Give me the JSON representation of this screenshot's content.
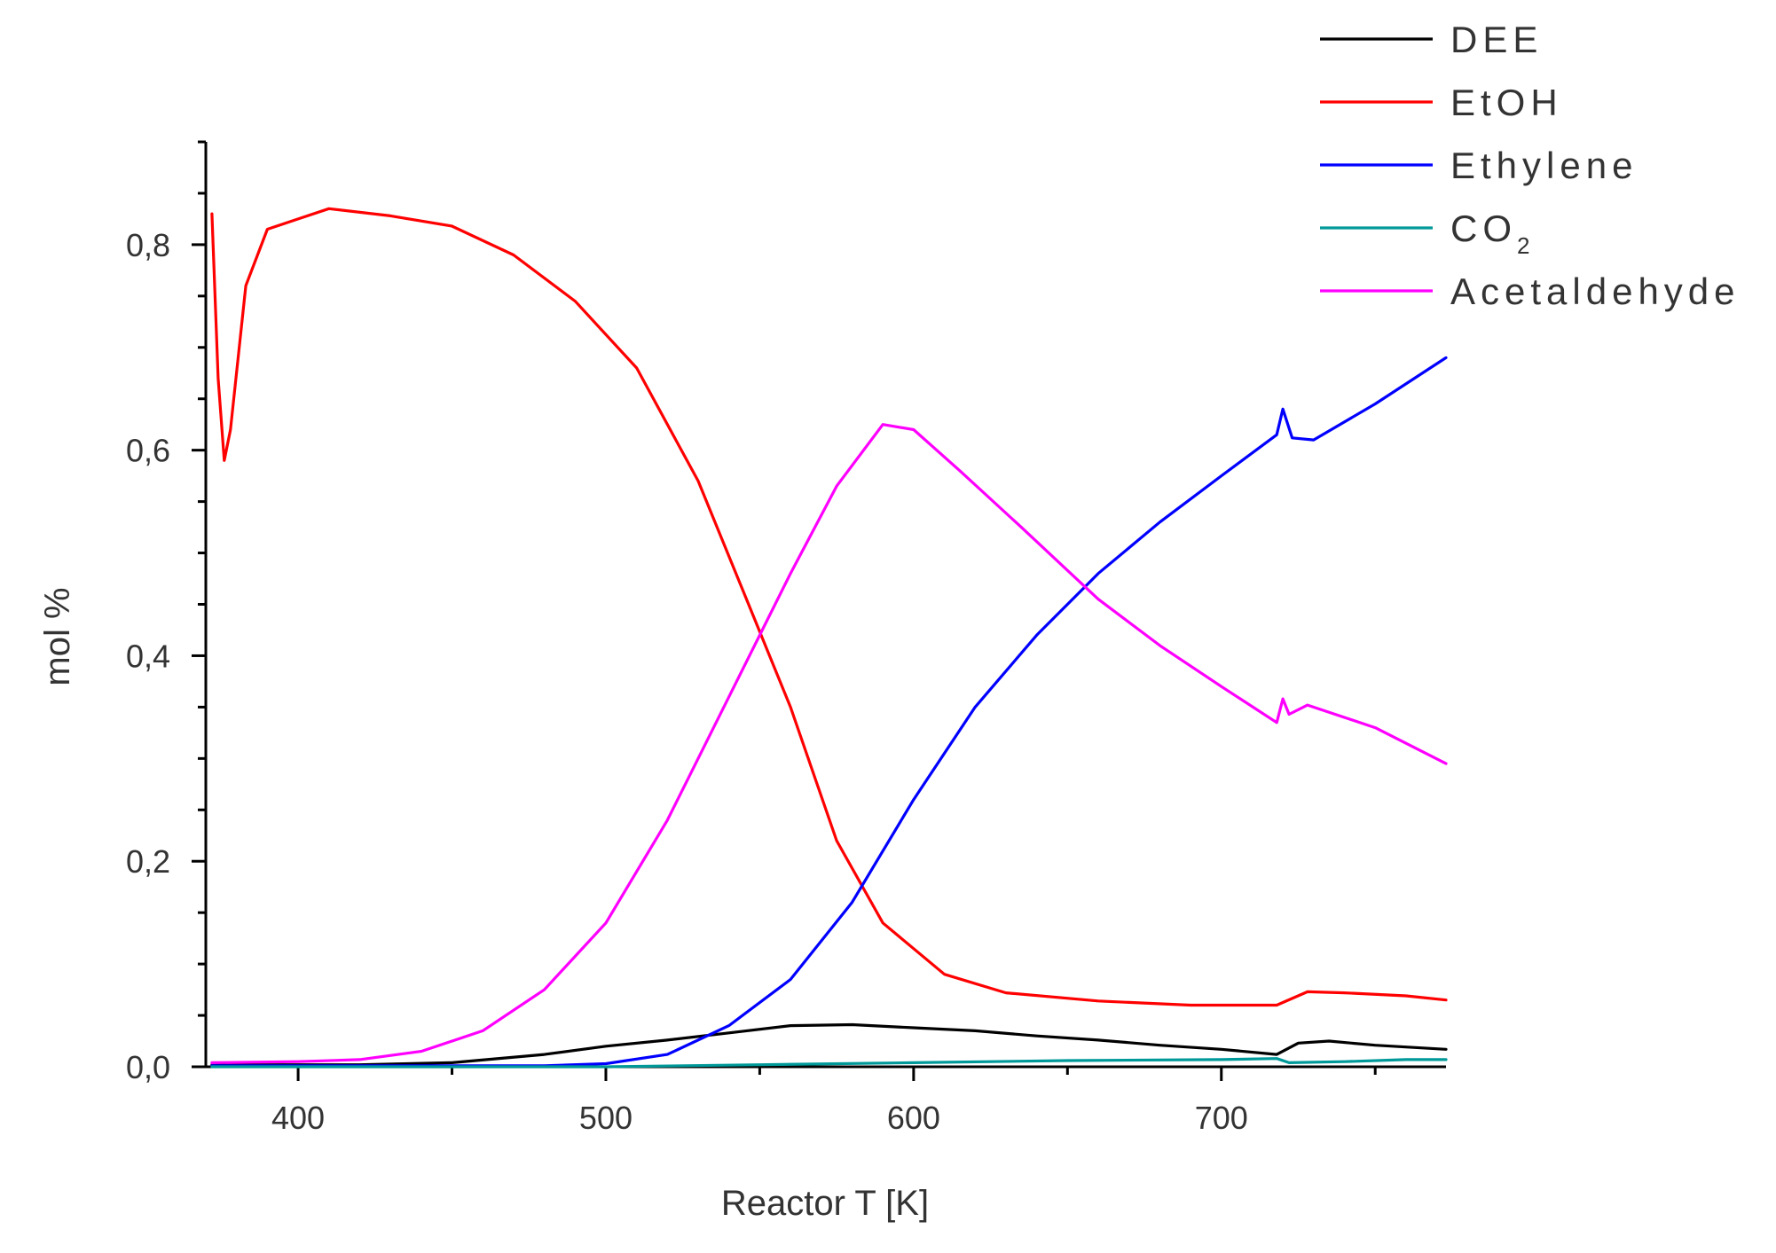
{
  "chart_data": {
    "type": "line",
    "title": "",
    "xlabel": "Reactor T [K]",
    "ylabel": "mol %",
    "xlim": [
      370,
      773
    ],
    "ylim": [
      0,
      0.9
    ],
    "xticks": [
      400,
      500,
      600,
      700
    ],
    "xtick_labels": [
      "400",
      "500",
      "600",
      "700"
    ],
    "yticks": [
      0,
      0.2,
      0.4,
      0.6,
      0.8
    ],
    "ytick_labels": [
      "0,0",
      "0,2",
      "0,4",
      "0,6",
      "0,8"
    ],
    "grid": false,
    "legend_position": "top-right",
    "series": [
      {
        "name": "DEE",
        "color": "#000000",
        "points": [
          [
            372,
            0.002
          ],
          [
            420,
            0.002
          ],
          [
            450,
            0.004
          ],
          [
            480,
            0.012
          ],
          [
            500,
            0.02
          ],
          [
            520,
            0.026
          ],
          [
            540,
            0.033
          ],
          [
            560,
            0.04
          ],
          [
            580,
            0.041
          ],
          [
            600,
            0.038
          ],
          [
            620,
            0.035
          ],
          [
            640,
            0.03
          ],
          [
            660,
            0.026
          ],
          [
            680,
            0.021
          ],
          [
            700,
            0.017
          ],
          [
            718,
            0.012
          ],
          [
            725,
            0.023
          ],
          [
            735,
            0.025
          ],
          [
            750,
            0.021
          ],
          [
            773,
            0.017
          ]
        ]
      },
      {
        "name": "EtOH",
        "color": "#ff0000",
        "points": [
          [
            372,
            0.83
          ],
          [
            374,
            0.67
          ],
          [
            376,
            0.59
          ],
          [
            378,
            0.62
          ],
          [
            383,
            0.76
          ],
          [
            390,
            0.815
          ],
          [
            400,
            0.825
          ],
          [
            410,
            0.835
          ],
          [
            430,
            0.828
          ],
          [
            450,
            0.818
          ],
          [
            470,
            0.79
          ],
          [
            490,
            0.745
          ],
          [
            510,
            0.68
          ],
          [
            530,
            0.57
          ],
          [
            545,
            0.46
          ],
          [
            560,
            0.35
          ],
          [
            575,
            0.22
          ],
          [
            590,
            0.14
          ],
          [
            610,
            0.09
          ],
          [
            630,
            0.072
          ],
          [
            660,
            0.064
          ],
          [
            690,
            0.06
          ],
          [
            718,
            0.06
          ],
          [
            728,
            0.073
          ],
          [
            740,
            0.072
          ],
          [
            760,
            0.069
          ],
          [
            773,
            0.065
          ]
        ]
      },
      {
        "name": "Ethylene",
        "color": "#0000ff",
        "points": [
          [
            372,
            0.001
          ],
          [
            480,
            0.001
          ],
          [
            500,
            0.003
          ],
          [
            520,
            0.012
          ],
          [
            540,
            0.04
          ],
          [
            560,
            0.085
          ],
          [
            580,
            0.16
          ],
          [
            600,
            0.26
          ],
          [
            620,
            0.35
          ],
          [
            640,
            0.42
          ],
          [
            660,
            0.48
          ],
          [
            680,
            0.53
          ],
          [
            700,
            0.575
          ],
          [
            718,
            0.615
          ],
          [
            720,
            0.64
          ],
          [
            723,
            0.612
          ],
          [
            730,
            0.61
          ],
          [
            750,
            0.645
          ],
          [
            773,
            0.69
          ]
        ]
      },
      {
        "name": "CO2",
        "name_main": "CO",
        "name_sub": "2",
        "color": "#009999",
        "points": [
          [
            372,
            0.0
          ],
          [
            500,
            0.0
          ],
          [
            550,
            0.002
          ],
          [
            600,
            0.004
          ],
          [
            650,
            0.006
          ],
          [
            700,
            0.007
          ],
          [
            718,
            0.008
          ],
          [
            722,
            0.004
          ],
          [
            740,
            0.005
          ],
          [
            760,
            0.007
          ],
          [
            773,
            0.007
          ]
        ]
      },
      {
        "name": "Acetaldehyde",
        "color": "#ff00ff",
        "points": [
          [
            372,
            0.004
          ],
          [
            400,
            0.005
          ],
          [
            420,
            0.007
          ],
          [
            440,
            0.015
          ],
          [
            460,
            0.035
          ],
          [
            480,
            0.075
          ],
          [
            500,
            0.14
          ],
          [
            520,
            0.24
          ],
          [
            540,
            0.36
          ],
          [
            560,
            0.48
          ],
          [
            575,
            0.565
          ],
          [
            590,
            0.625
          ],
          [
            600,
            0.62
          ],
          [
            615,
            0.58
          ],
          [
            635,
            0.525
          ],
          [
            660,
            0.455
          ],
          [
            680,
            0.41
          ],
          [
            700,
            0.37
          ],
          [
            718,
            0.335
          ],
          [
            720,
            0.358
          ],
          [
            722,
            0.343
          ],
          [
            728,
            0.352
          ],
          [
            750,
            0.33
          ],
          [
            773,
            0.295
          ]
        ]
      }
    ]
  }
}
